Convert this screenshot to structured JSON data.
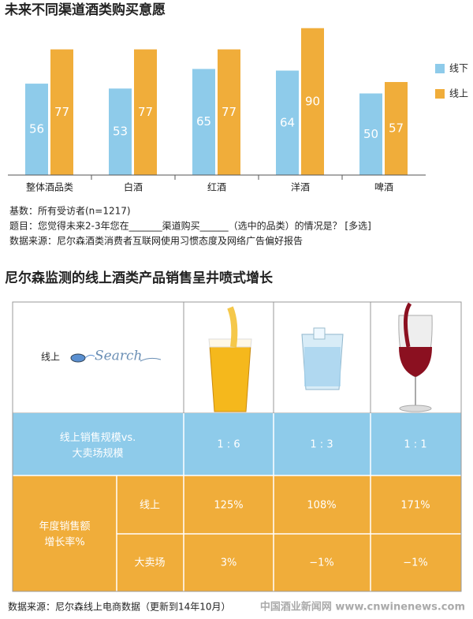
{
  "chart_data": {
    "type": "bar",
    "title": "未来不同渠道酒类购买意愿",
    "categories": [
      "整体酒品类",
      "白酒",
      "红酒",
      "洋酒",
      "啤酒"
    ],
    "series": [
      {
        "name": "线下",
        "color": "#8ecbea",
        "values": [
          56,
          53,
          65,
          64,
          50
        ]
      },
      {
        "name": "线上",
        "color": "#f0ad3a",
        "values": [
          77,
          77,
          77,
          90,
          57
        ]
      }
    ],
    "legend": "right"
  },
  "notes": [
    "基数：所有受访者(n=1217)",
    "题目：您觉得未来2-3年您在_______渠道购买______（选中的品类）的情况是？ [多选]",
    "数据来源：尼尔森酒类消费者互联网使用习惯态度及网络广告偏好报告"
  ],
  "table": {
    "title": "尼尔森监测的线上酒类产品销售呈井喷式增长",
    "search_label": "线上",
    "search_text": "Search",
    "scale_row": {
      "label": [
        "线上销售规模vs.",
        "大卖场规模"
      ],
      "values": [
        "1 : 6",
        "1 : 3",
        "1 : 1"
      ]
    },
    "growth": {
      "label": [
        "年度销售额",
        "增长率%"
      ],
      "rows": [
        {
          "name": "线上",
          "values": [
            "125%",
            "108%",
            "171%"
          ]
        },
        {
          "name": "大卖场",
          "values": [
            "3%",
            "−1%",
            "−1%"
          ]
        }
      ]
    }
  },
  "footer": {
    "source": "数据来源：尼尔森线上电商数据（更新到14年10月）",
    "watermark": "中国酒业新闻网 www.cnwinenews.com"
  }
}
